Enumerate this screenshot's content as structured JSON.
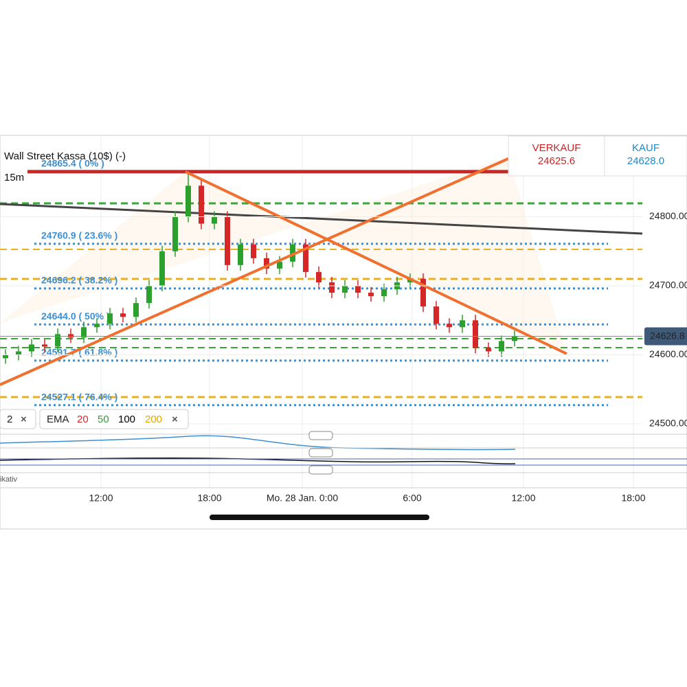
{
  "chart_data": {
    "type": "candlestick",
    "title": "Wall Street Kassa (10$) (-)",
    "timeframe": "15m",
    "quote": {
      "sell_label": "VERKAUF",
      "sell": 24625.6,
      "buy_label": "KAUF",
      "buy": {
        "value": 24628,
        "label": "24628.0"
      }
    },
    "current_price": 24626.8,
    "ylim": [
      24487,
      24917
    ],
    "yticks": [
      {
        "value": 24500,
        "label": "24500.00"
      },
      {
        "value": 24600,
        "label": "24600.00"
      },
      {
        "value": 24700,
        "label": "24700.00"
      },
      {
        "value": 24800,
        "label": "24800.00"
      }
    ],
    "xtick_labels": [
      "12:00",
      "18:00",
      "Mo. 28 Jan. 0:00",
      "6:00",
      "12:00",
      "18:00"
    ],
    "fib_levels": [
      {
        "value": 24865.4,
        "label": "24865.4 ( 0% )"
      },
      {
        "value": 24760.9,
        "label": "24760.9 ( 23.6% )"
      },
      {
        "value": 24696.2,
        "label": "24696.2 ( 38.2% )"
      },
      {
        "value": 24644.0,
        "label": "24644.0 ( 50% )"
      },
      {
        "value": 24591.7,
        "label": "24591.7 ( 61.8% )"
      },
      {
        "value": 24527.1,
        "label": "24527.1 ( 76.4% )"
      }
    ],
    "indicator_legend": {
      "first": "2",
      "ema_label": "EMA",
      "ema_periods": [
        {
          "value": 20,
          "color": "#d62728"
        },
        {
          "value": 50,
          "color": "#2ca02c"
        },
        {
          "value": 100,
          "color": "#000000"
        },
        {
          "value": 200,
          "color": "#e6a800"
        }
      ]
    },
    "volume_label": "ikativ",
    "up_color": "#2ca02c",
    "down_color": "#d62728",
    "open": [
      24595,
      24600,
      24605,
      24615,
      24612,
      24630,
      24625,
      24640,
      24645,
      24660,
      24655,
      24675,
      24700,
      24750,
      24800,
      24845,
      24790,
      24800,
      24730,
      24760,
      24740,
      24725,
      24735,
      24760,
      24720,
      24705,
      24690,
      24700,
      24690,
      24685,
      24695,
      24705,
      24710,
      24670,
      24645,
      24640,
      24650,
      24610,
      24605,
      24620
    ],
    "high": [
      24608,
      24613,
      24623,
      24623,
      24638,
      24638,
      24648,
      24653,
      24668,
      24668,
      24683,
      24708,
      24758,
      24808,
      24865,
      24853,
      24808,
      24808,
      24768,
      24768,
      24748,
      24743,
      24768,
      24768,
      24728,
      24713,
      24708,
      24708,
      24698,
      24703,
      24713,
      24718,
      24718,
      24678,
      24653,
      24658,
      24658,
      24618,
      24628,
      24635
    ],
    "low": [
      24587,
      24592,
      24597,
      24604,
      24604,
      24617,
      24617,
      24632,
      24637,
      24647,
      24647,
      24667,
      24692,
      24742,
      24792,
      24782,
      24782,
      24722,
      24722,
      24732,
      24717,
      24717,
      24727,
      24712,
      24697,
      24682,
      24682,
      24682,
      24677,
      24677,
      24687,
      24697,
      24662,
      24637,
      24632,
      24632,
      24602,
      24597,
      24597,
      24612
    ],
    "close": [
      24600,
      24605,
      24615,
      24612,
      24630,
      24625,
      24640,
      24645,
      24660,
      24655,
      24675,
      24700,
      24750,
      24800,
      24845,
      24790,
      24800,
      24730,
      24760,
      24740,
      24725,
      24735,
      24760,
      24720,
      24705,
      24690,
      24700,
      24690,
      24685,
      24695,
      24705,
      24710,
      24670,
      24645,
      24640,
      24650,
      24610,
      24605,
      24620,
      24627
    ]
  }
}
